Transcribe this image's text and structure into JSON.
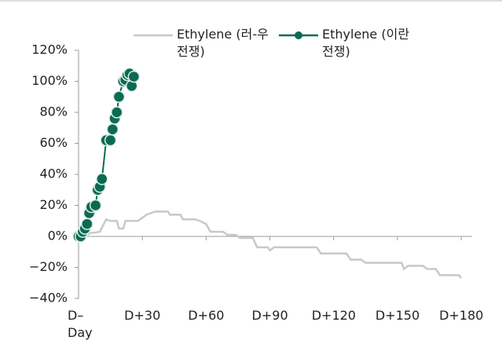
{
  "chart_data": {
    "type": "line",
    "xlim": [
      0,
      185
    ],
    "ylim": [
      -40,
      120
    ],
    "xticks": [
      {
        "value": 0,
        "label": "D–Day"
      },
      {
        "value": 30,
        "label": "D+30"
      },
      {
        "value": 60,
        "label": "D+60"
      },
      {
        "value": 90,
        "label": "D+90"
      },
      {
        "value": 120,
        "label": "D+120"
      },
      {
        "value": 150,
        "label": "D+150"
      },
      {
        "value": 180,
        "label": "D+180"
      }
    ],
    "yticks": [
      {
        "value": -40,
        "label": "−40%"
      },
      {
        "value": -20,
        "label": "−20%"
      },
      {
        "value": 0,
        "label": "0%"
      },
      {
        "value": 20,
        "label": "20%"
      },
      {
        "value": 40,
        "label": "40%"
      },
      {
        "value": 60,
        "label": "60%"
      },
      {
        "value": 80,
        "label": "80%"
      },
      {
        "value": 100,
        "label": "100%"
      },
      {
        "value": 120,
        "label": "120%"
      }
    ],
    "series": [
      {
        "name": "Ethylene (러-우 전쟁)",
        "color": "#c8c8c8",
        "markers": false,
        "x": [
          0,
          3,
          5,
          10,
          13,
          15,
          18,
          19,
          21,
          22,
          28,
          30,
          32,
          36,
          42,
          43,
          48,
          49,
          55,
          57,
          60,
          62,
          68,
          70,
          74,
          76,
          82,
          84,
          89,
          90,
          92,
          112,
          114,
          126,
          128,
          133,
          135,
          152,
          153,
          155,
          162,
          164,
          168,
          170,
          179,
          180
        ],
        "values": [
          0,
          -1,
          2,
          3,
          11,
          10,
          10,
          5,
          5,
          10,
          10,
          12,
          14,
          16,
          16,
          14,
          14,
          11,
          11,
          10,
          8,
          3,
          3,
          1,
          1,
          -1,
          -1,
          -7,
          -7,
          -9,
          -7,
          -7,
          -11,
          -11,
          -15,
          -15,
          -17,
          -17,
          -21,
          -19,
          -19,
          -21,
          -21,
          -25,
          -25,
          -27
        ]
      },
      {
        "name": "Ethylene (이란 전쟁)",
        "color": "#0a6b52",
        "markers": true,
        "x": [
          0,
          1,
          2,
          3,
          4,
          5,
          6,
          8,
          9,
          10,
          11,
          13,
          15,
          16,
          17,
          18,
          19,
          21,
          22,
          23,
          24,
          25,
          26
        ],
        "values": [
          0,
          0,
          3,
          5,
          8,
          15,
          19,
          20,
          30,
          32,
          37,
          62,
          62,
          69,
          76,
          80,
          90,
          100,
          101,
          104,
          105,
          97,
          103
        ]
      }
    ]
  }
}
